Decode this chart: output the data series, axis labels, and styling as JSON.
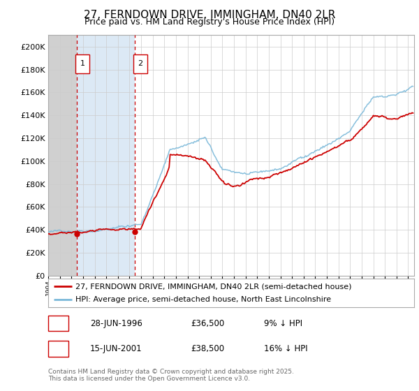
{
  "title": "27, FERNDOWN DRIVE, IMMINGHAM, DN40 2LR",
  "subtitle": "Price paid vs. HM Land Registry's House Price Index (HPI)",
  "legend_line1": "27, FERNDOWN DRIVE, IMMINGHAM, DN40 2LR (semi-detached house)",
  "legend_line2": "HPI: Average price, semi-detached house, North East Lincolnshire",
  "footer": "Contains HM Land Registry data © Crown copyright and database right 2025.\nThis data is licensed under the Open Government Licence v3.0.",
  "xlim_start": 1994.0,
  "xlim_end": 2025.5,
  "ylim_min": 0,
  "ylim_max": 210000,
  "ytick_step": 20000,
  "sale1_date": 1996.49,
  "sale1_price": 36500,
  "sale1_label": "1",
  "sale2_date": 2001.46,
  "sale2_price": 38500,
  "sale2_label": "2",
  "table_data": [
    {
      "num": "1",
      "date": "28-JUN-1996",
      "price": "£36,500",
      "note": "9% ↓ HPI"
    },
    {
      "num": "2",
      "date": "15-JUN-2001",
      "price": "£38,500",
      "note": "16% ↓ HPI"
    }
  ],
  "hpi_color": "#7ab8d9",
  "price_color": "#cc0000",
  "shading_left_color": "#dddddd",
  "shading_between_color": "#dce9f5",
  "grid_color": "#cccccc",
  "background_color": "#ffffff",
  "title_fontsize": 11,
  "subtitle_fontsize": 9,
  "ytick_fontsize": 8,
  "xtick_fontsize": 6.5,
  "legend_fontsize": 8,
  "table_fontsize": 8.5,
  "footer_fontsize": 6.5
}
